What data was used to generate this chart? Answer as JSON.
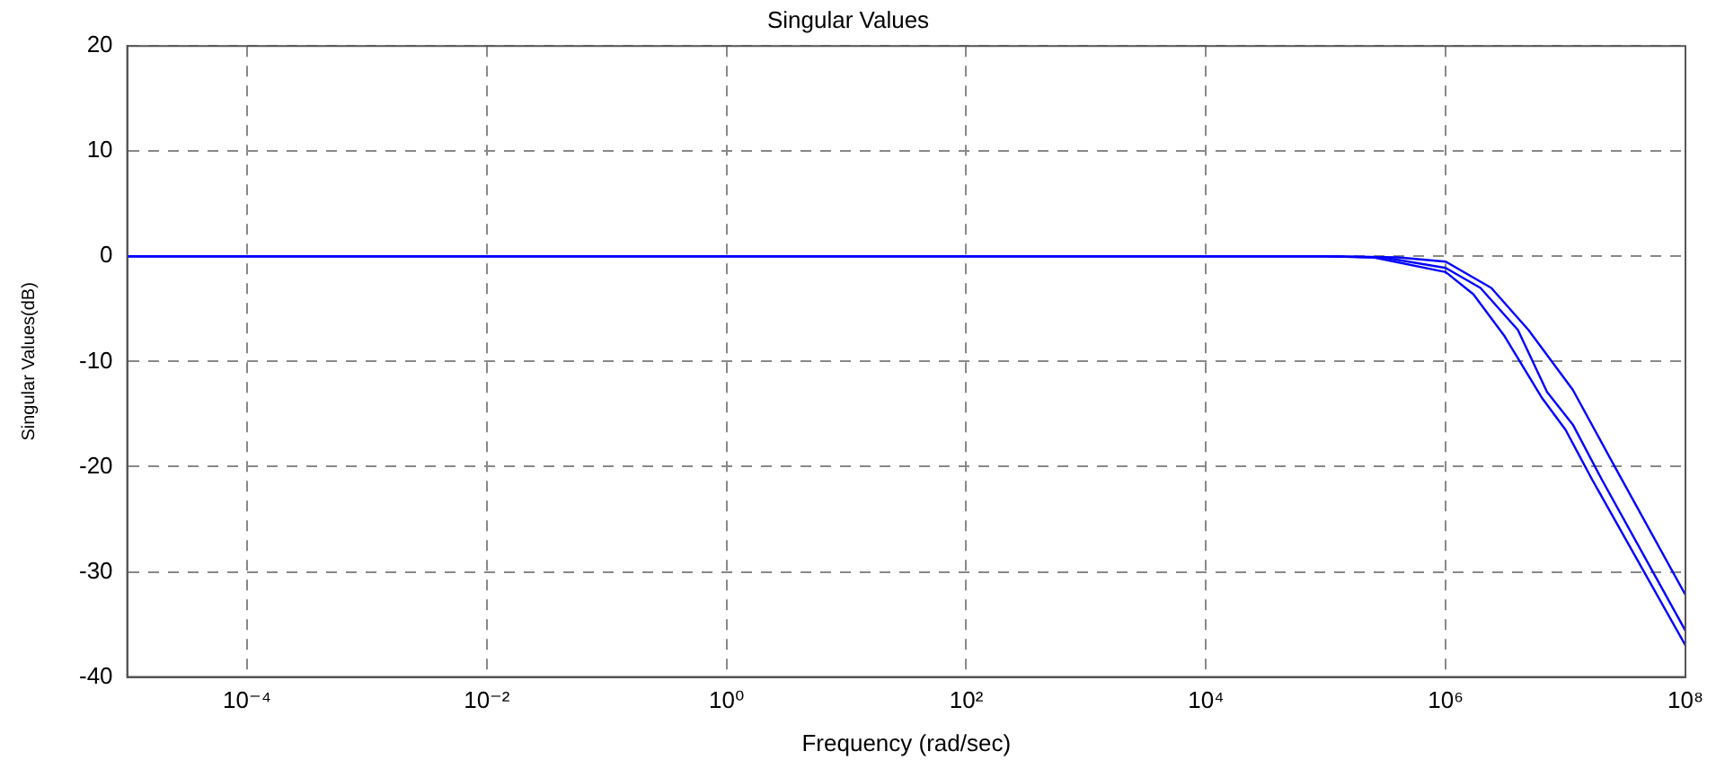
{
  "chart_data": {
    "type": "line",
    "title": "Singular Values",
    "xlabel": "Frequency (rad/sec)",
    "ylabel": "Singular Values(dB)",
    "log": "x",
    "grid": true,
    "legend": false,
    "marker": "none",
    "line_style": "solid",
    "xlim": [
      1e-05,
      100000000
    ],
    "xticks": [
      {
        "value": 0.0001,
        "label": "10⁻⁴"
      },
      {
        "value": 0.01,
        "label": "10⁻²"
      },
      {
        "value": 1,
        "label": "10⁰"
      },
      {
        "value": 100,
        "label": "10²"
      },
      {
        "value": 10000,
        "label": "10⁴"
      },
      {
        "value": 1000000,
        "label": "10⁶"
      },
      {
        "value": 100000000,
        "label": "10⁸"
      }
    ],
    "ylim": [
      -40,
      20
    ],
    "yticks": [
      -40,
      -30,
      -20,
      -10,
      0,
      10,
      20
    ],
    "series": [
      {
        "color": "#0000ff",
        "x": [
          1e-05,
          100000,
          400000,
          1000000,
          2400000,
          4900000,
          11500000,
          26000000,
          100000000
        ],
        "values": [
          0,
          0,
          -0.1,
          -0.5,
          -3,
          -7,
          -12.7,
          -20.1,
          -32.2
        ]
      },
      {
        "color": "#0000ff",
        "x": [
          1e-05,
          100000,
          300000,
          1000000,
          1950000,
          4000000,
          7000000,
          11500000,
          20000000,
          100000000
        ],
        "values": [
          0,
          0,
          -0.1,
          -1.1,
          -3,
          -7,
          -12.9,
          -16,
          -21.2,
          -35.6
        ]
      },
      {
        "color": "#0000ff",
        "x": [
          1e-05,
          100000,
          250000,
          1000000,
          1700000,
          3100000,
          6300000,
          10000000,
          16600000,
          100000000
        ],
        "values": [
          0,
          0,
          -0.1,
          -1.5,
          -3.6,
          -7.6,
          -13.4,
          -16.5,
          -21.2,
          -37
        ]
      }
    ]
  }
}
